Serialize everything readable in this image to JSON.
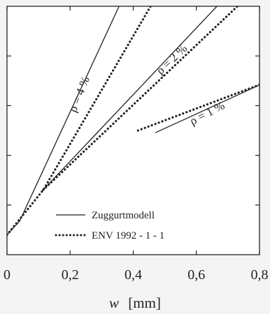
{
  "chart_data": {
    "type": "line",
    "title": "",
    "xlabel": "w",
    "xlabel_unit": "[mm]",
    "xlim": [
      0,
      0.8
    ],
    "ylim": [
      0,
      1
    ],
    "x_ticks": [
      "0",
      "0,2",
      "0,4",
      "0,6",
      "0,8"
    ],
    "grid": false,
    "legend_position": "bottom-center",
    "legend": [
      {
        "label": "Zuggurtmodell",
        "style": "solid"
      },
      {
        "label": "ENV 1992 - 1 - 1",
        "style": "dotted"
      }
    ],
    "annotations": [
      {
        "text": "ρ = 4 %",
        "x": 0.24,
        "y": 0.64
      },
      {
        "text": "ρ = 2 %",
        "x": 0.53,
        "y": 0.775
      },
      {
        "text": "ρ = 1 %",
        "x": 0.64,
        "y": 0.556
      }
    ],
    "series": [
      {
        "group": "ρ = 4 %",
        "style": "solid",
        "x": [
          0,
          0.04,
          0.355
        ],
        "y": [
          0.0795,
          0.135,
          1.0
        ]
      },
      {
        "group": "ρ = 4 %",
        "style": "dotted",
        "x": [
          0,
          0.115,
          0.455
        ],
        "y": [
          0.0795,
          0.261,
          1.0
        ]
      },
      {
        "group": "ρ = 2 %",
        "style": "solid",
        "x": [
          0.11,
          0.665
        ],
        "y": [
          0.255,
          1.0
        ]
      },
      {
        "group": "ρ = 2 %",
        "style": "dotted",
        "x": [
          0.115,
          0.73
        ],
        "y": [
          0.261,
          1.0
        ]
      },
      {
        "group": "ρ = 1 %",
        "style": "solid",
        "x": [
          0.47,
          0.81
        ],
        "y": [
          0.491,
          0.689
        ]
      },
      {
        "group": "ρ = 1 %",
        "style": "dotted",
        "x": [
          0.415,
          0.81
        ],
        "y": [
          0.5,
          0.689
        ]
      }
    ]
  }
}
